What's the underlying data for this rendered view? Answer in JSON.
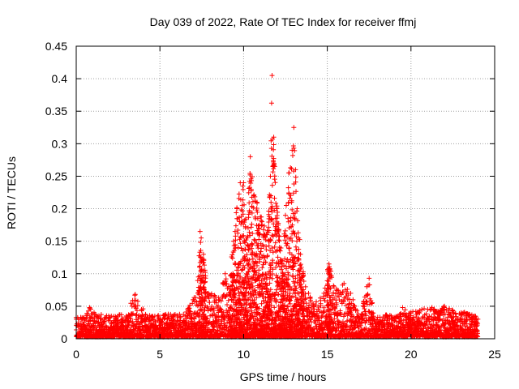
{
  "chart_data": {
    "type": "scatter",
    "title": "Day 039 of 2022, Rate Of TEC Index for receiver ffmj",
    "xlabel": "GPS time / hours",
    "ylabel": "ROTI / TECUs",
    "xlim": [
      0,
      25
    ],
    "ylim": [
      0,
      0.45
    ],
    "xticks": [
      0,
      5,
      10,
      15,
      20,
      25
    ],
    "yticks": [
      0,
      0.05,
      0.1,
      0.15,
      0.2,
      0.25,
      0.3,
      0.35,
      0.4,
      0.45
    ],
    "grid": true,
    "marker": "+",
    "series": [
      {
        "name": "ROTI",
        "color": "#ff0000",
        "envelope_note": "Upper envelope of dense scatter (hour, approx max ROTI); points fill densely below each value",
        "envelope": [
          [
            0.0,
            0.03
          ],
          [
            0.5,
            0.03
          ],
          [
            0.8,
            0.048
          ],
          [
            1.2,
            0.035
          ],
          [
            2.0,
            0.033
          ],
          [
            3.0,
            0.035
          ],
          [
            3.5,
            0.067
          ],
          [
            3.9,
            0.045
          ],
          [
            4.5,
            0.033
          ],
          [
            5.5,
            0.035
          ],
          [
            6.5,
            0.035
          ],
          [
            7.0,
            0.06
          ],
          [
            7.3,
            0.095
          ],
          [
            7.4,
            0.165
          ],
          [
            7.6,
            0.13
          ],
          [
            7.9,
            0.07
          ],
          [
            8.5,
            0.06
          ],
          [
            8.9,
            0.1
          ],
          [
            9.1,
            0.08
          ],
          [
            9.4,
            0.15
          ],
          [
            9.6,
            0.2
          ],
          [
            9.8,
            0.24
          ],
          [
            10.0,
            0.24
          ],
          [
            10.2,
            0.155
          ],
          [
            10.4,
            0.28
          ],
          [
            10.6,
            0.22
          ],
          [
            10.8,
            0.21
          ],
          [
            11.1,
            0.18
          ],
          [
            11.4,
            0.16
          ],
          [
            11.6,
            0.25
          ],
          [
            11.7,
            0.405
          ],
          [
            11.8,
            0.31
          ],
          [
            12.0,
            0.2
          ],
          [
            12.3,
            0.12
          ],
          [
            12.5,
            0.19
          ],
          [
            12.7,
            0.255
          ],
          [
            12.9,
            0.29
          ],
          [
            13.0,
            0.325
          ],
          [
            13.1,
            0.26
          ],
          [
            13.2,
            0.2
          ],
          [
            13.4,
            0.13
          ],
          [
            13.7,
            0.08
          ],
          [
            14.2,
            0.05
          ],
          [
            14.8,
            0.07
          ],
          [
            15.1,
            0.115
          ],
          [
            15.4,
            0.08
          ],
          [
            15.7,
            0.07
          ],
          [
            16.0,
            0.085
          ],
          [
            16.4,
            0.07
          ],
          [
            16.7,
            0.045
          ],
          [
            17.0,
            0.035
          ],
          [
            17.5,
            0.093
          ],
          [
            17.8,
            0.03
          ],
          [
            18.5,
            0.035
          ],
          [
            19.0,
            0.033
          ],
          [
            19.5,
            0.048
          ],
          [
            20.0,
            0.04
          ],
          [
            21.0,
            0.045
          ],
          [
            22.0,
            0.048
          ],
          [
            23.0,
            0.04
          ],
          [
            23.8,
            0.035
          ],
          [
            24.0,
            0.03
          ]
        ]
      }
    ]
  }
}
